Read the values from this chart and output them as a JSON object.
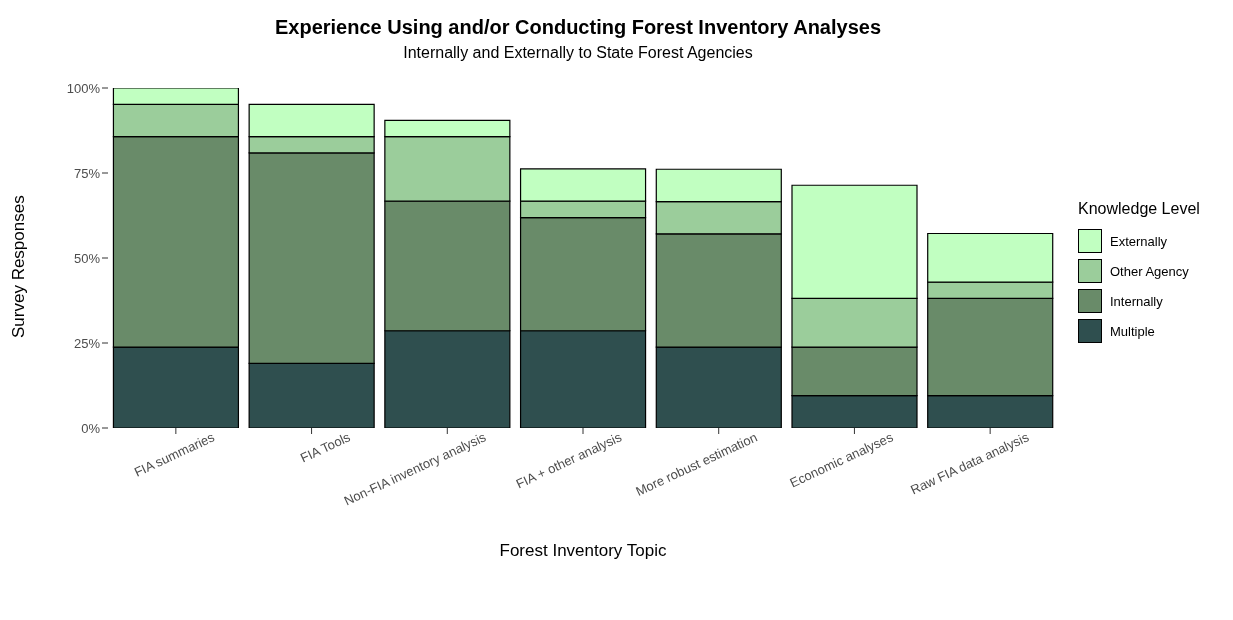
{
  "chart_data": {
    "type": "bar",
    "title": "Experience Using and/or Conducting Forest Inventory Analyses",
    "subtitle": "Internally and Externally to State Forest Agencies",
    "xlabel": "Forest Inventory Topic",
    "ylabel": "Survey Responses",
    "legend_title": "Knowledge Level",
    "categories": [
      "FIA summaries",
      "FIA Tools",
      "Non-FIA inventory analysis",
      "FIA + other analysis",
      "More robust estimation",
      "Economic analyses",
      "Raw FIA data analysis"
    ],
    "stacked": true,
    "series": [
      {
        "name": "Multiple",
        "color": "#2f4f4f",
        "values": [
          23.8,
          19.0,
          28.6,
          28.6,
          23.8,
          9.5,
          9.5
        ]
      },
      {
        "name": "Internally",
        "color": "#698b69",
        "values": [
          61.9,
          61.9,
          38.1,
          33.3,
          33.3,
          14.3,
          28.6
        ]
      },
      {
        "name": "Other Agency",
        "color": "#9bcd9b",
        "values": [
          9.5,
          4.8,
          19.0,
          4.8,
          9.5,
          14.3,
          4.8
        ]
      },
      {
        "name": "Externally",
        "color": "#c1ffc1",
        "values": [
          4.8,
          9.5,
          4.8,
          9.5,
          9.5,
          33.3,
          14.3
        ]
      }
    ],
    "ylim": [
      0,
      100
    ],
    "yticks": [
      {
        "value": 0,
        "label": "0%"
      },
      {
        "value": 25,
        "label": "25%"
      },
      {
        "value": 50,
        "label": "50%"
      },
      {
        "value": 75,
        "label": "75%"
      },
      {
        "value": 100,
        "label": "100%"
      }
    ],
    "grid": false,
    "legend": "right"
  }
}
